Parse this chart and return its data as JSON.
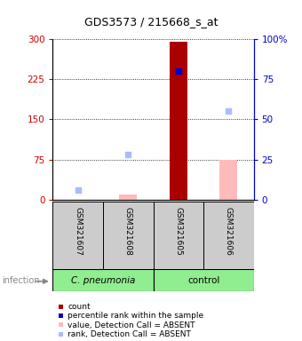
{
  "title": "GDS3573 / 215668_s_at",
  "samples": [
    "GSM321607",
    "GSM321608",
    "GSM321605",
    "GSM321606"
  ],
  "left_ylim": [
    0,
    300
  ],
  "right_ylim": [
    0,
    100
  ],
  "left_yticks": [
    0,
    75,
    150,
    225,
    300
  ],
  "right_yticks": [
    0,
    25,
    50,
    75,
    100
  ],
  "left_yticklabels": [
    "0",
    "75",
    "150",
    "225",
    "300"
  ],
  "right_yticklabels": [
    "0",
    "25",
    "50",
    "75",
    "100%"
  ],
  "left_tick_color": "#cc0000",
  "right_tick_color": "#0000cc",
  "bar_color_present": "#aa0000",
  "bar_color_absent": "#ffbbbb",
  "dot_color_present": "#0000cc",
  "dot_color_absent": "#aabbff",
  "count_values": [
    null,
    null,
    295,
    null
  ],
  "count_absent": [
    null,
    10,
    null,
    75
  ],
  "rank_present_pct": [
    null,
    null,
    80,
    null
  ],
  "rank_absent_pct": [
    6,
    28,
    null,
    55
  ],
  "x_positions": [
    1,
    2,
    3,
    4
  ],
  "bar_width": 0.35,
  "dot_size": 20,
  "legend_items": [
    {
      "color": "#aa0000",
      "label": "count"
    },
    {
      "color": "#0000cc",
      "label": "percentile rank within the sample"
    },
    {
      "color": "#ffbbbb",
      "label": "value, Detection Call = ABSENT"
    },
    {
      "color": "#aabbff",
      "label": "rank, Detection Call = ABSENT"
    }
  ],
  "group_pneumonia_label": "C. pneumonia",
  "group_control_label": "control",
  "group_color": "#90EE90",
  "sample_box_color": "#cccccc",
  "infection_label": "infection",
  "infection_color": "#888888"
}
